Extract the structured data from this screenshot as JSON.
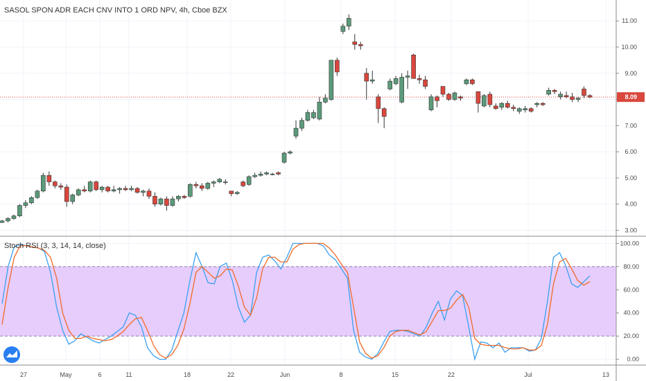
{
  "header": {
    "title": "SASOL SPON ADR EACH CNV INTO 1 ORD NPV, 4h, Cboe BZX"
  },
  "indicator_title": "Stoch RSI (3, 3, 14, 14, close)",
  "colors": {
    "up": "#5b9a7a",
    "down": "#d9473d",
    "k_line": "#3aa0f0",
    "d_line": "#f06a28",
    "band_fill": "#e6cdfc",
    "price_line": "#e53935",
    "grid": "#f0f3fa"
  },
  "chart_data": [
    {
      "type": "candlestick",
      "title": "SASOL SPON ADR EACH CNV INTO 1 ORD NPV, 4h, Cboe BZX",
      "ylim": [
        2.8,
        11.8
      ],
      "y_ticks": [
        "3.00",
        "4.00",
        "5.00",
        "6.00",
        "7.00",
        "8.00",
        "9.00",
        "10.00",
        "11.00"
      ],
      "x_ticks": [
        "27",
        "May",
        "6",
        "11",
        "18",
        "22",
        "Jun",
        "8",
        "15",
        "22",
        "Jul",
        "13"
      ],
      "last_price": 8.09,
      "last_price_label": "8.09",
      "candles": [
        [
          3.3,
          3.4,
          3.28,
          3.36
        ],
        [
          3.36,
          3.5,
          3.3,
          3.45
        ],
        [
          3.45,
          3.6,
          3.4,
          3.55
        ],
        [
          3.55,
          4.0,
          3.5,
          3.95
        ],
        [
          3.95,
          4.15,
          3.85,
          4.05
        ],
        [
          4.05,
          4.3,
          4.0,
          4.25
        ],
        [
          4.25,
          4.55,
          4.2,
          4.5
        ],
        [
          4.5,
          5.2,
          4.45,
          5.1
        ],
        [
          5.1,
          5.25,
          4.7,
          4.85
        ],
        [
          4.85,
          4.9,
          4.6,
          4.7
        ],
        [
          4.7,
          4.8,
          4.55,
          4.65
        ],
        [
          4.65,
          4.75,
          3.9,
          4.1
        ],
        [
          4.1,
          4.4,
          4.0,
          4.35
        ],
        [
          4.35,
          4.6,
          4.3,
          4.55
        ],
        [
          4.55,
          4.7,
          4.45,
          4.5
        ],
        [
          4.5,
          4.9,
          4.45,
          4.85
        ],
        [
          4.85,
          4.9,
          4.5,
          4.55
        ],
        [
          4.55,
          4.7,
          4.45,
          4.65
        ],
        [
          4.65,
          4.7,
          4.45,
          4.5
        ],
        [
          4.5,
          4.7,
          4.45,
          4.55
        ],
        [
          4.55,
          4.65,
          4.4,
          4.6
        ],
        [
          4.6,
          4.7,
          4.5,
          4.55
        ],
        [
          4.55,
          4.7,
          4.5,
          4.6
        ],
        [
          4.6,
          4.65,
          4.4,
          4.45
        ],
        [
          4.45,
          4.55,
          4.3,
          4.5
        ],
        [
          4.5,
          4.6,
          4.2,
          4.3
        ],
        [
          4.3,
          4.45,
          3.9,
          4.0
        ],
        [
          4.0,
          4.25,
          3.95,
          4.2
        ],
        [
          4.2,
          4.3,
          3.75,
          3.95
        ],
        [
          3.95,
          4.3,
          3.9,
          4.2
        ],
        [
          4.2,
          4.35,
          4.1,
          4.3
        ],
        [
          4.3,
          4.35,
          4.2,
          4.25
        ],
        [
          4.3,
          4.8,
          4.25,
          4.75
        ],
        [
          4.75,
          4.85,
          4.6,
          4.7
        ],
        [
          4.7,
          4.8,
          4.5,
          4.6
        ],
        [
          4.6,
          4.85,
          4.55,
          4.8
        ],
        [
          4.8,
          4.9,
          4.65,
          4.85
        ],
        [
          4.85,
          5.0,
          4.8,
          4.95
        ],
        [
          4.85,
          4.95,
          4.75,
          4.85
        ],
        [
          4.5,
          4.5,
          4.3,
          4.4
        ],
        [
          4.4,
          4.5,
          4.35,
          4.45
        ],
        [
          4.85,
          4.9,
          4.65,
          4.7
        ],
        [
          4.75,
          5.1,
          4.7,
          5.05
        ],
        [
          5.05,
          5.2,
          5.0,
          5.1
        ],
        [
          5.1,
          5.25,
          5.05,
          5.15
        ],
        [
          5.15,
          5.25,
          5.1,
          5.2
        ],
        [
          5.15,
          5.2,
          5.1,
          5.15
        ],
        [
          5.2,
          5.25,
          5.1,
          5.15
        ],
        [
          5.6,
          6.0,
          5.55,
          5.95
        ],
        [
          5.95,
          6.05,
          5.9,
          6.0
        ],
        [
          6.6,
          7.2,
          6.5,
          6.9
        ],
        [
          6.9,
          7.3,
          6.8,
          7.2
        ],
        [
          7.2,
          7.6,
          7.15,
          7.5
        ],
        [
          7.3,
          7.6,
          7.25,
          7.5
        ],
        [
          7.25,
          8.1,
          7.2,
          7.9
        ],
        [
          7.9,
          8.2,
          7.85,
          8.05
        ],
        [
          8.0,
          9.5,
          7.95,
          9.5
        ],
        [
          9.5,
          9.6,
          8.9,
          9.05
        ],
        [
          10.6,
          10.9,
          10.5,
          10.8
        ],
        [
          10.8,
          11.25,
          10.65,
          11.1
        ],
        [
          10.2,
          10.5,
          9.9,
          10.1
        ],
        [
          10.1,
          10.2,
          9.9,
          10.05
        ],
        [
          9.0,
          9.2,
          8.0,
          8.7
        ],
        [
          8.7,
          9.1,
          8.6,
          8.75
        ],
        [
          8.1,
          8.2,
          7.1,
          7.65
        ],
        [
          7.65,
          7.7,
          6.9,
          7.35
        ],
        [
          8.4,
          8.8,
          8.35,
          8.7
        ],
        [
          8.6,
          8.9,
          8.55,
          8.8
        ],
        [
          7.9,
          9.0,
          7.85,
          8.85
        ],
        [
          8.85,
          9.1,
          8.4,
          8.9
        ],
        [
          9.7,
          9.75,
          8.8,
          8.8
        ],
        [
          8.8,
          8.95,
          8.6,
          8.75
        ],
        [
          8.75,
          8.9,
          8.4,
          8.5
        ],
        [
          7.6,
          8.2,
          7.55,
          8.1
        ],
        [
          8.1,
          8.15,
          7.7,
          7.95
        ],
        [
          8.5,
          8.5,
          8.1,
          8.2
        ],
        [
          8.2,
          8.25,
          7.95,
          8.0
        ],
        [
          8.0,
          8.3,
          7.95,
          8.25
        ],
        [
          8.1,
          8.15,
          7.95,
          8.05
        ],
        [
          8.6,
          8.8,
          8.55,
          8.75
        ],
        [
          8.75,
          8.8,
          8.55,
          8.6
        ],
        [
          8.3,
          8.3,
          7.5,
          7.85
        ],
        [
          7.75,
          8.2,
          7.7,
          8.15
        ],
        [
          8.2,
          8.3,
          7.7,
          7.8
        ],
        [
          7.75,
          7.85,
          7.6,
          7.65
        ],
        [
          7.7,
          7.9,
          7.6,
          7.85
        ],
        [
          7.85,
          7.95,
          7.65,
          7.7
        ],
        [
          7.7,
          7.8,
          7.55,
          7.65
        ],
        [
          7.55,
          7.7,
          7.45,
          7.65
        ],
        [
          7.6,
          7.75,
          7.5,
          7.65
        ],
        [
          7.65,
          7.7,
          7.5,
          7.55
        ],
        [
          7.8,
          7.9,
          7.7,
          7.85
        ],
        [
          7.85,
          7.9,
          7.75,
          7.8
        ],
        [
          8.2,
          8.45,
          8.15,
          8.35
        ],
        [
          8.35,
          8.4,
          8.2,
          8.3
        ],
        [
          8.1,
          8.3,
          8.0,
          8.2
        ],
        [
          8.15,
          8.3,
          8.05,
          8.1
        ],
        [
          8.1,
          8.25,
          7.9,
          8.0
        ],
        [
          8.0,
          8.1,
          7.9,
          8.05
        ],
        [
          8.4,
          8.5,
          8.05,
          8.15
        ],
        [
          8.15,
          8.2,
          8.05,
          8.09
        ]
      ]
    },
    {
      "type": "line",
      "title": "Stoch RSI (3, 3, 14, 14, close)",
      "ylim": [
        -5,
        105
      ],
      "y_ticks": [
        "0.00",
        "20.00",
        "40.00",
        "60.00",
        "80.00",
        "100.00"
      ],
      "bands": [
        20,
        80
      ],
      "series": [
        {
          "name": "K",
          "values": [
            48,
            80,
            97,
            99,
            98,
            97,
            96,
            93,
            75,
            45,
            25,
            13,
            16,
            22,
            19,
            16,
            14,
            17,
            20,
            24,
            28,
            40,
            38,
            28,
            10,
            3,
            0,
            0,
            8,
            24,
            40,
            68,
            92,
            80,
            66,
            65,
            80,
            83,
            68,
            45,
            32,
            38,
            75,
            88,
            90,
            85,
            78,
            88,
            100,
            100,
            100,
            100,
            100,
            98,
            90,
            86,
            78,
            70,
            25,
            6,
            2,
            0,
            5,
            15,
            24,
            25,
            25,
            24,
            22,
            20,
            28,
            40,
            50,
            34,
            52,
            59,
            55,
            28,
            0,
            15,
            14,
            10,
            14,
            6,
            10,
            10,
            10,
            7,
            8,
            18,
            50,
            88,
            92,
            81,
            65,
            62,
            67,
            72
          ]
        },
        {
          "name": "D",
          "values": [
            30,
            62,
            88,
            98,
            98,
            97,
            96,
            94,
            88,
            70,
            40,
            25,
            18,
            18,
            20,
            18,
            17,
            16,
            17,
            20,
            24,
            30,
            35,
            36,
            25,
            12,
            4,
            1,
            4,
            12,
            26,
            48,
            75,
            80,
            75,
            70,
            72,
            78,
            77,
            63,
            45,
            38,
            53,
            78,
            88,
            88,
            84,
            84,
            95,
            99,
            100,
            100,
            100,
            100,
            96,
            90,
            82,
            75,
            45,
            15,
            5,
            1,
            3,
            10,
            20,
            24,
            25,
            25,
            23,
            21,
            24,
            33,
            42,
            42,
            44,
            51,
            56,
            45,
            18,
            13,
            12,
            12,
            12,
            10,
            9,
            9,
            10,
            8,
            8,
            12,
            30,
            65,
            84,
            87,
            78,
            68,
            64,
            67
          ]
        }
      ]
    }
  ]
}
